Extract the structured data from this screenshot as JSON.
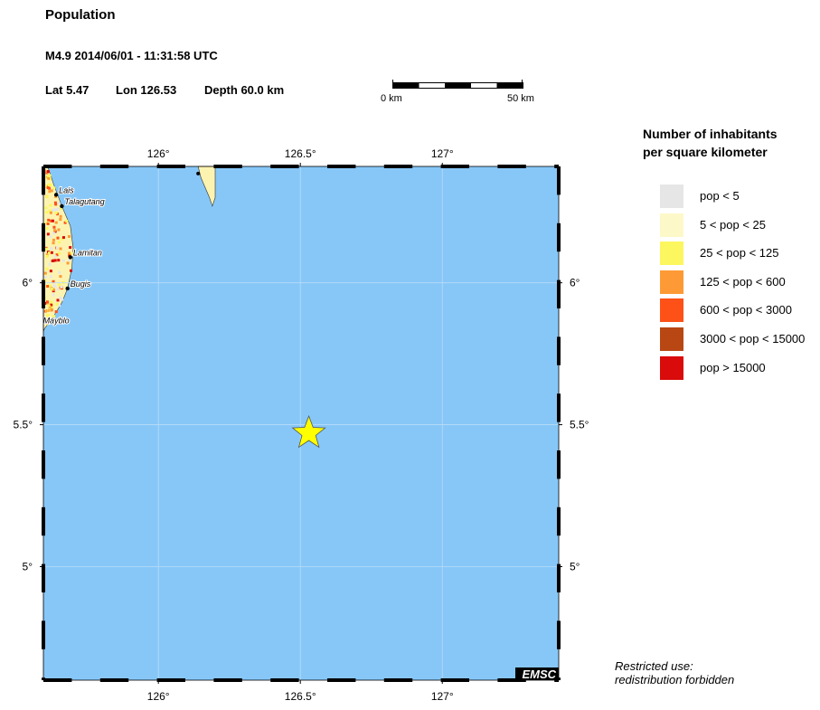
{
  "title": "Population",
  "event": "M4.9  2014/06/01 - 11:31:58 UTC",
  "lat_label": "Lat  5.47",
  "lon_label": "Lon 126.53",
  "depth_label": "Depth  60.0 km",
  "scale": {
    "start": "0 km",
    "end": "50 km"
  },
  "map": {
    "lon_range": [
      125.595,
      127.41
    ],
    "lat_range": [
      4.6,
      6.41
    ],
    "ocean_color": "#87c7f8",
    "x_ticks": [
      {
        "value": 126,
        "label": "126°"
      },
      {
        "value": 126.5,
        "label": "126.5°"
      },
      {
        "value": 127,
        "label": "127°"
      }
    ],
    "y_ticks": [
      {
        "value": 6,
        "label": "6°"
      },
      {
        "value": 5.5,
        "label": "5.5°"
      },
      {
        "value": 5,
        "label": "5°"
      }
    ],
    "epicenter": {
      "lon": 126.53,
      "lat": 5.47,
      "icon": "star-icon",
      "color": "#ffff00"
    },
    "places": [
      {
        "name": "Lais",
        "lon": 125.64,
        "lat": 6.31
      },
      {
        "name": "Talagutang",
        "lon": 125.66,
        "lat": 6.27
      },
      {
        "name": "Lamitan",
        "lon": 125.69,
        "lat": 6.09
      },
      {
        "name": "Bugis",
        "lon": 125.68,
        "lat": 5.98
      },
      {
        "name": "Mayblo",
        "lon": 125.6,
        "lat": 5.87
      }
    ],
    "logo": "EMSC"
  },
  "legend": {
    "title_line1": "Number of inhabitants",
    "title_line2": "per square kilometer",
    "items": [
      {
        "label": "pop < 5",
        "color": "#e6e6e6"
      },
      {
        "label": "5 < pop < 25",
        "color": "#fdf8c8"
      },
      {
        "label": "25 < pop < 125",
        "color": "#fcf75e"
      },
      {
        "label": "125 < pop < 600",
        "color": "#fd9a35"
      },
      {
        "label": "600 < pop < 3000",
        "color": "#fd5118"
      },
      {
        "label": "3000 < pop < 15000",
        "color": "#b84713"
      },
      {
        "label": "pop > 15000",
        "color": "#d90b0b"
      }
    ]
  },
  "footer": {
    "line1": "Restricted use:",
    "line2": "redistribution forbidden"
  }
}
